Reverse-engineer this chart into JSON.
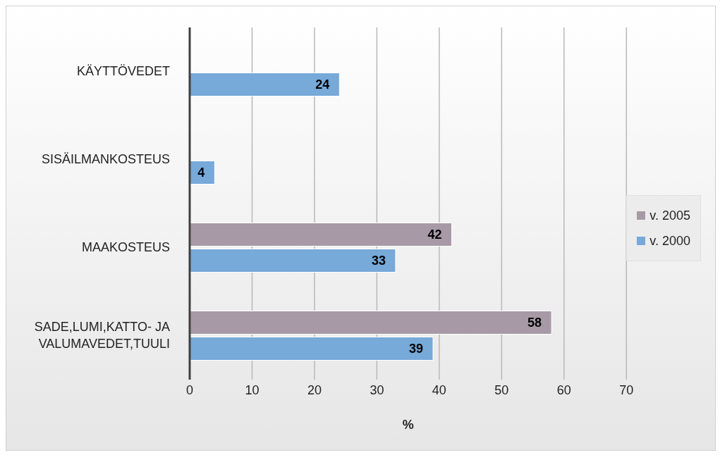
{
  "chart_data": {
    "type": "bar",
    "orientation": "horizontal",
    "xlabel": "%",
    "categories": [
      "KÄYTTÖVEDET",
      "SISÄILMANKOSTEUS",
      "MAAKOSTEUS",
      "SADE,LUMI,KATTO- JA VALUMAVEDET,TUULI"
    ],
    "series": [
      {
        "name": "v. 2005",
        "color": "#a79aa6",
        "values": [
          null,
          null,
          42,
          58
        ]
      },
      {
        "name": "v. 2000",
        "color": "#77a9d9",
        "values": [
          24,
          4,
          33,
          39
        ]
      }
    ],
    "xlim": [
      0,
      70
    ],
    "xticks": [
      0,
      10,
      20,
      30,
      40,
      50,
      60,
      70
    ],
    "grid": "x",
    "legend": "right",
    "data_labels": true
  }
}
